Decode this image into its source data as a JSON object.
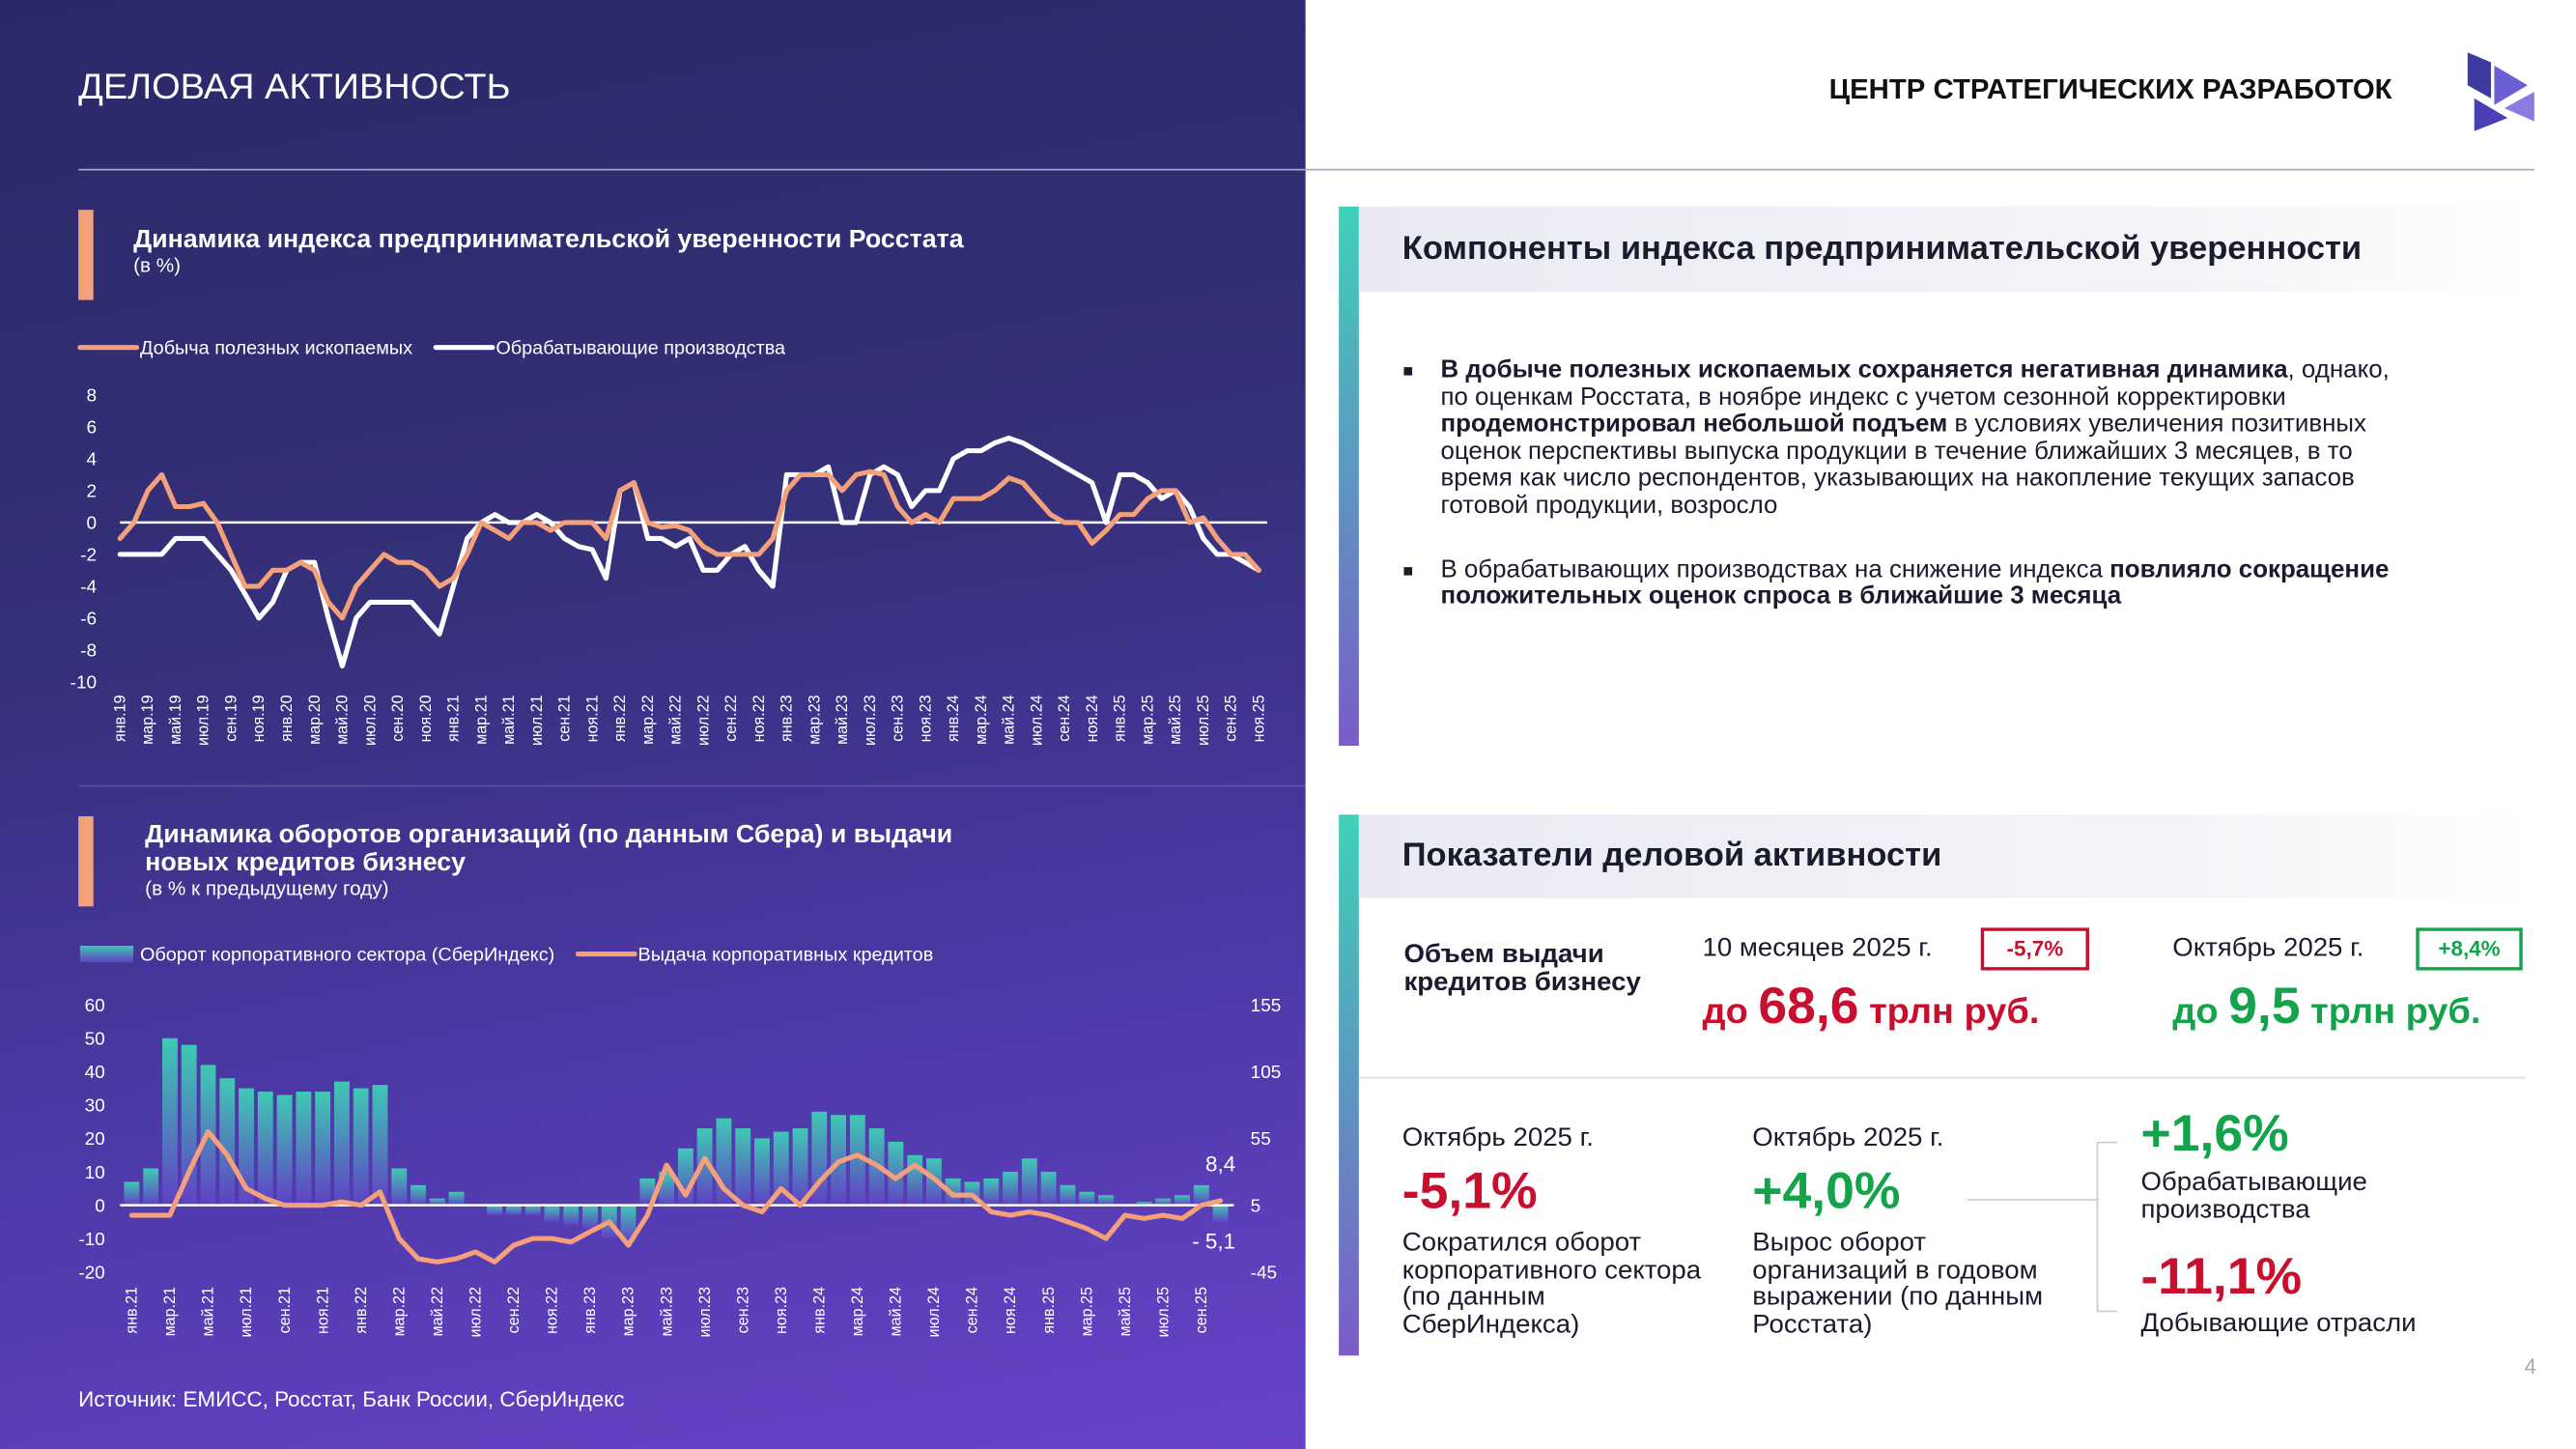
{
  "header": {
    "title": "ДЕЛОВАЯ АКТИВНОСТЬ",
    "org": "ЦЕНТР СТРАТЕГИЧЕСКИХ РАЗРАБОТОК"
  },
  "chart_data": [
    {
      "type": "line",
      "title": "Динамика индекса предпринимательской уверенности Росстата",
      "subtitle": "(в %)",
      "categories": [
        "янв.19",
        null,
        "мар.19",
        null,
        "май.19",
        null,
        "июл.19",
        null,
        "сен.19",
        null,
        "ноя.19",
        null,
        "янв.20",
        null,
        "мар.20",
        null,
        "май.20",
        null,
        "июл.20",
        null,
        "сен.20",
        null,
        "ноя.20",
        null,
        "янв.21",
        null,
        "мар.21",
        null,
        "май.21",
        null,
        "июл.21",
        null,
        "сен.21",
        null,
        "ноя.21",
        null,
        "янв.22",
        null,
        "мар.22",
        null,
        "май.22",
        null,
        "июл.22",
        null,
        "сен.22",
        null,
        "ноя.22",
        null,
        "янв.23",
        null,
        "мар.23",
        null,
        "май.23",
        null,
        "июл.23",
        null,
        "сен.23",
        null,
        "ноя.23",
        null,
        "янв.24",
        null,
        "мар.24",
        null,
        "май.24",
        null,
        "июл.24",
        null,
        "сен.24",
        null,
        "ноя.24",
        null,
        "янв.25",
        null,
        "мар.25",
        null,
        "май.25",
        null,
        "июл.25",
        null,
        "сен.25",
        null,
        "ноя.25"
      ],
      "series": [
        {
          "name": "Добыча полезных ископаемых",
          "color": "#f4a07a",
          "values": [
            -1,
            0,
            2,
            3,
            1,
            1,
            1.2,
            0,
            -2,
            -4,
            -4,
            -3,
            -3,
            -2.5,
            -3,
            -5,
            -6,
            -4,
            -3,
            -2,
            -2.5,
            -2.5,
            -3,
            -4,
            -3.5,
            -2,
            0,
            -0.5,
            -1,
            0,
            0,
            -0.5,
            0,
            0,
            0,
            -1,
            2,
            2.5,
            0,
            -0.3,
            -0.2,
            -0.5,
            -1.5,
            -2,
            -2,
            -2,
            -2,
            -1,
            2,
            3,
            3,
            3,
            2,
            3,
            3.2,
            3,
            1,
            0,
            0.5,
            0,
            1.5,
            1.5,
            1.5,
            2,
            2.8,
            2.5,
            1.5,
            0.5,
            0,
            0,
            -1.3,
            -0.5,
            0.5,
            0.5,
            1.5,
            2,
            2,
            0,
            0.3,
            -1,
            -2,
            -2,
            -3
          ]
        },
        {
          "name": "Обрабатывающие производства",
          "color": "#ffffff",
          "values": [
            -2,
            -2,
            -2,
            -2,
            -1,
            -1,
            -1,
            -2,
            -3,
            -4.5,
            -6,
            -5,
            -3,
            -2.5,
            -2.5,
            -6,
            -9,
            -6,
            -5,
            -5,
            -5,
            -5,
            -6,
            -7,
            -4,
            -1,
            0,
            0.5,
            0,
            0,
            0.5,
            0,
            -1,
            -1.5,
            -1.7,
            -3.5,
            2,
            2.5,
            -1,
            -1,
            -1.5,
            -1,
            -3,
            -3,
            -2,
            -1.5,
            -3,
            -4,
            3,
            3,
            3,
            3.5,
            0,
            0,
            3,
            3.5,
            3,
            1,
            2,
            2,
            4,
            4.5,
            4.5,
            5,
            5.3,
            5,
            4.5,
            4,
            3.5,
            3,
            2.5,
            0,
            3,
            3,
            2.5,
            1.5,
            2,
            1,
            -1,
            -2,
            -2,
            -2.5,
            -3
          ]
        }
      ],
      "ylim": [
        -10,
        8
      ],
      "yticks": [
        -10,
        -8,
        -6,
        -4,
        -2,
        0,
        2,
        4,
        6,
        8
      ]
    },
    {
      "type": "bar",
      "title": "Динамика оборотов организаций (по данным Сбера) и выдачи новых кредитов бизнесу",
      "subtitle": "(в % к предыдущему году)",
      "categories": [
        "янв.21",
        null,
        "мар.21",
        null,
        "май.21",
        null,
        "июл.21",
        null,
        "сен.21",
        null,
        "ноя.21",
        null,
        "янв.22",
        null,
        "мар.22",
        null,
        "май.22",
        null,
        "июл.22",
        null,
        "сен.22",
        null,
        "ноя.22",
        null,
        "янв.23",
        null,
        "мар.23",
        null,
        "май.23",
        null,
        "июл.23",
        null,
        "сен.23",
        null,
        "ноя.23",
        null,
        "янв.24",
        null,
        "мар.24",
        null,
        "май.24",
        null,
        "июл.24",
        null,
        "сен.24",
        null,
        "ноя.24",
        null,
        "янв.25",
        null,
        "мар.25",
        null,
        "май.25",
        null,
        "июл.25",
        null,
        "сен.25",
        null
      ],
      "series": [
        {
          "name": "Оборот корпоративного сектора (СберИндекс)",
          "type": "bar",
          "color": "#3fc9b4",
          "values": [
            7,
            11,
            50,
            48,
            42,
            38,
            35,
            34,
            33,
            34,
            34,
            37,
            35,
            36,
            11,
            6,
            2,
            4,
            0,
            -3,
            -3,
            -3,
            -5,
            -6,
            -7,
            -10,
            -11,
            8,
            10,
            17,
            23,
            26,
            23,
            20,
            22,
            23,
            28,
            27,
            27,
            23,
            19,
            15,
            14,
            8,
            7,
            8,
            10,
            14,
            10,
            6,
            4,
            3,
            0,
            1,
            2,
            3,
            6,
            -5.1
          ],
          "value_labels": [
            null,
            null,
            null,
            null,
            null,
            null,
            null,
            null,
            null,
            null,
            null,
            null,
            null,
            null,
            null,
            null,
            null,
            null,
            null,
            null,
            null,
            null,
            null,
            null,
            null,
            null,
            null,
            null,
            null,
            null,
            null,
            null,
            null,
            null,
            null,
            null,
            null,
            null,
            null,
            null,
            null,
            null,
            null,
            null,
            null,
            null,
            null,
            null,
            null,
            null,
            null,
            null,
            null,
            null,
            null,
            null,
            null,
            "- 5,1"
          ]
        },
        {
          "name": "Выдача корпоративных кредитов",
          "type": "line",
          "color": "#f4a07a",
          "axis": "y2",
          "values": [
            -2.5,
            -2.5,
            -2.5,
            30,
            60,
            42.5,
            17.5,
            10,
            5,
            5,
            5,
            7.5,
            5,
            15,
            -20,
            -35,
            -37.5,
            -35,
            -30,
            -37.5,
            -25,
            -20,
            -20,
            -22.5,
            -15,
            -7.5,
            -25,
            -2.5,
            35,
            12.5,
            40,
            17.5,
            5,
            0,
            17.5,
            5,
            22.5,
            37.5,
            42.5,
            35,
            25,
            35,
            25,
            12.5,
            12.5,
            0,
            -2.5,
            0,
            -2.5,
            -7.5,
            -12.5,
            -20,
            -2.5,
            -5,
            -2.5,
            -5,
            5,
            8.4
          ],
          "value_labels": [
            null,
            null,
            null,
            null,
            null,
            null,
            null,
            null,
            null,
            null,
            null,
            null,
            null,
            null,
            null,
            null,
            null,
            null,
            null,
            null,
            null,
            null,
            null,
            null,
            null,
            null,
            null,
            null,
            null,
            null,
            null,
            null,
            null,
            null,
            null,
            null,
            null,
            null,
            null,
            null,
            null,
            null,
            null,
            null,
            null,
            null,
            null,
            null,
            null,
            null,
            null,
            null,
            null,
            null,
            null,
            null,
            null,
            "8,4"
          ]
        }
      ],
      "ylim": [
        -20,
        60
      ],
      "yticks": [
        -20,
        -10,
        0,
        10,
        20,
        30,
        40,
        50,
        60
      ],
      "y2lim": [
        -45,
        155
      ],
      "y2ticks": [
        -45,
        5,
        55,
        105,
        155
      ]
    }
  ],
  "source": "Источник: ЕМИСС, Росстат, Банк России, СберИндекс",
  "components": {
    "title": "Компоненты индекса предпринимательской уверенности",
    "bullets": [
      {
        "segments": [
          {
            "text": "В добыче полезных ископаемых сохраняется негативная динамика",
            "bold": true
          },
          {
            "text": ", однако, по оценкам Росстата, в ноябре индекс с учетом сезонной корректировки ",
            "bold": false
          },
          {
            "text": "продемонстрировал небольшой подъем",
            "bold": true
          },
          {
            "text": " в условиях увеличения позитивных оценок перспективы выпуска продукции в течение ближайших 3 месяцев, в то время как число респондентов, указывающих на накопление текущих запасов готовой продукции, возросло",
            "bold": false
          }
        ]
      },
      {
        "segments": [
          {
            "text": "В обрабатывающих производствах на снижение индекса ",
            "bold": false
          },
          {
            "text": "повлияло сокращение положительных оценок спроса в ближайшие 3 месяца",
            "bold": true
          }
        ]
      }
    ]
  },
  "indicators": {
    "title": "Показатели деловой активности",
    "credit_label": "Объем выдачи кредитов бизнесу",
    "credit": [
      {
        "period": "10 месяцев 2025 г.",
        "change": "-5,7%",
        "prefix": "до",
        "amount": "68,6",
        "unit": "трлн руб."
      },
      {
        "period": "Октябрь 2025 г.",
        "change": "+8,4%",
        "prefix": "до",
        "amount": "9,5",
        "unit": "трлн руб."
      }
    ],
    "stats": [
      {
        "period": "Октябрь 2025 г.",
        "value": "-5,1%",
        "description": "Сократился оборот корпоративного сектора (по данным СберИндекса)"
      },
      {
        "period": "Октябрь 2025 г.",
        "value": "+4,0%",
        "description": "Вырос оборот организаций в годовом выражении (по данным Росстата)"
      }
    ],
    "breakdown": [
      {
        "value": "+1,6%",
        "label": "Обрабатывающие производства"
      },
      {
        "value": "-11,1%",
        "label": "Добывающие отрасли"
      }
    ]
  },
  "page_number": "4"
}
